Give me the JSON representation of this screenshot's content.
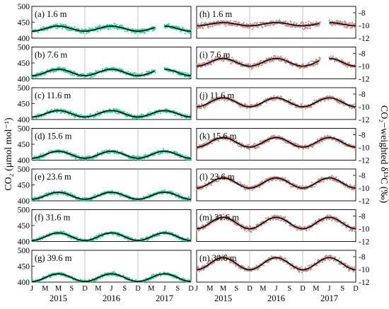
{
  "figure": {
    "left_ylabel": "CO₂ (μmol mol⁻¹)",
    "right_ylabel": "CO₂−weighted δ¹³C (‰)",
    "month_ticks": [
      "J",
      "M",
      "M",
      "S",
      "D",
      "M",
      "J",
      "S",
      "D",
      "M",
      "J",
      "S",
      "D"
    ],
    "years": [
      "2015",
      "2016",
      "2017"
    ],
    "colors": {
      "co2_points": "#2fd39a",
      "d13c_points": "#c98a8a",
      "fit": "#000000",
      "frame": "#000000",
      "grid": "#888888"
    }
  },
  "chart_data": [
    {
      "panel": "(a) 1.6 m",
      "type": "scatter",
      "variable": "CO2",
      "xlim": [
        "2015-01",
        "2017-12"
      ],
      "ylim": [
        400,
        500
      ],
      "yticks": [
        400,
        450,
        500
      ],
      "gap": [
        "2017-05",
        "2017-06"
      ],
      "fit": {
        "base": 430,
        "amp": 8,
        "trend": 0,
        "noise": 14
      }
    },
    {
      "panel": "(b) 7.6 m",
      "type": "scatter",
      "variable": "CO2",
      "xlim": [
        "2015-01",
        "2017-12"
      ],
      "ylim": [
        400,
        500
      ],
      "yticks": [
        400,
        450,
        500
      ],
      "gap": [
        "2017-05",
        "2017-06"
      ],
      "fit": {
        "base": 420,
        "amp": 10,
        "trend": 0,
        "noise": 13
      }
    },
    {
      "panel": "(c) 11.6 m",
      "type": "scatter",
      "variable": "CO2",
      "xlim": [
        "2015-01",
        "2017-12"
      ],
      "ylim": [
        400,
        500
      ],
      "yticks": [
        400,
        450,
        500
      ],
      "gap": null,
      "fit": {
        "base": 418,
        "amp": 10,
        "trend": 0,
        "noise": 12
      }
    },
    {
      "panel": "(d) 15.6 m",
      "type": "scatter",
      "variable": "CO2",
      "xlim": [
        "2015-01",
        "2017-12"
      ],
      "ylim": [
        400,
        500
      ],
      "yticks": [
        400,
        450,
        500
      ],
      "gap": null,
      "fit": {
        "base": 417,
        "amp": 11,
        "trend": 0,
        "noise": 12
      }
    },
    {
      "panel": "(e) 23.6 m",
      "type": "scatter",
      "variable": "CO2",
      "xlim": [
        "2015-01",
        "2017-12"
      ],
      "ylim": [
        400,
        500
      ],
      "yticks": [
        400,
        450,
        500
      ],
      "gap": null,
      "fit": {
        "base": 416,
        "amp": 11,
        "trend": 0,
        "noise": 11
      }
    },
    {
      "panel": "(f) 31.6 m",
      "type": "scatter",
      "variable": "CO2",
      "xlim": [
        "2015-01",
        "2017-12"
      ],
      "ylim": [
        400,
        500
      ],
      "yticks": [
        400,
        450,
        500
      ],
      "gap": null,
      "fit": {
        "base": 415,
        "amp": 12,
        "trend": 0,
        "noise": 11
      }
    },
    {
      "panel": "(g) 39.6 m",
      "type": "scatter",
      "variable": "CO2",
      "xlim": [
        "2015-01",
        "2017-12"
      ],
      "ylim": [
        400,
        500
      ],
      "yticks": [
        400,
        450,
        500
      ],
      "gap": null,
      "fit": {
        "base": 414,
        "amp": 12,
        "trend": 0,
        "noise": 11
      }
    },
    {
      "panel": "(h) 1.6 m",
      "type": "scatter",
      "variable": "d13C",
      "xlim": [
        "2015-01",
        "2017-12"
      ],
      "ylim": [
        -12,
        -7
      ],
      "yticks": [
        -12,
        -10,
        -8
      ],
      "gap": [
        "2017-05",
        "2017-06"
      ],
      "fit": {
        "base": -9.8,
        "amp": 0.25,
        "trend": 0,
        "noise": 0.9
      }
    },
    {
      "panel": "(i) 7.6 m",
      "type": "scatter",
      "variable": "d13C",
      "xlim": [
        "2015-01",
        "2017-12"
      ],
      "ylim": [
        -12,
        -7
      ],
      "yticks": [
        -12,
        -10,
        -8
      ],
      "gap": [
        "2017-05",
        "2017-06"
      ],
      "fit": {
        "base": -9.4,
        "amp": 0.6,
        "trend": 0,
        "noise": 0.8
      }
    },
    {
      "panel": "(j) 11.6 m",
      "type": "scatter",
      "variable": "d13C",
      "xlim": [
        "2015-01",
        "2017-12"
      ],
      "ylim": [
        -12,
        -7
      ],
      "yticks": [
        -12,
        -10,
        -8
      ],
      "gap": null,
      "fit": {
        "base": -9.3,
        "amp": 0.7,
        "trend": 0,
        "noise": 0.7
      }
    },
    {
      "panel": "(k) 15.6 m",
      "type": "scatter",
      "variable": "d13C",
      "xlim": [
        "2015-01",
        "2017-12"
      ],
      "ylim": [
        -12,
        -7
      ],
      "yticks": [
        -12,
        -10,
        -8
      ],
      "gap": null,
      "fit": {
        "base": -9.2,
        "amp": 0.75,
        "trend": 0,
        "noise": 0.7
      }
    },
    {
      "panel": "(l) 23.6 m",
      "type": "scatter",
      "variable": "d13C",
      "xlim": [
        "2015-01",
        "2017-12"
      ],
      "ylim": [
        -12,
        -7
      ],
      "yticks": [
        -12,
        -10,
        -8
      ],
      "gap": null,
      "fit": {
        "base": -9.2,
        "amp": 0.8,
        "trend": 0,
        "noise": 0.7
      }
    },
    {
      "panel": "(m) 31.6 m",
      "type": "scatter",
      "variable": "d13C",
      "xlim": [
        "2015-01",
        "2017-12"
      ],
      "ylim": [
        -12,
        -7
      ],
      "yticks": [
        -12,
        -10,
        -8
      ],
      "gap": null,
      "fit": {
        "base": -9.1,
        "amp": 0.9,
        "trend": 0,
        "noise": 0.8
      }
    },
    {
      "panel": "(n) 39.6 m",
      "type": "scatter",
      "variable": "d13C",
      "xlim": [
        "2015-01",
        "2017-12"
      ],
      "ylim": [
        -12,
        -7
      ],
      "yticks": [
        -12,
        -10,
        -8
      ],
      "gap": null,
      "fit": {
        "base": -9.1,
        "amp": 0.95,
        "trend": 0,
        "noise": 0.8
      }
    }
  ]
}
